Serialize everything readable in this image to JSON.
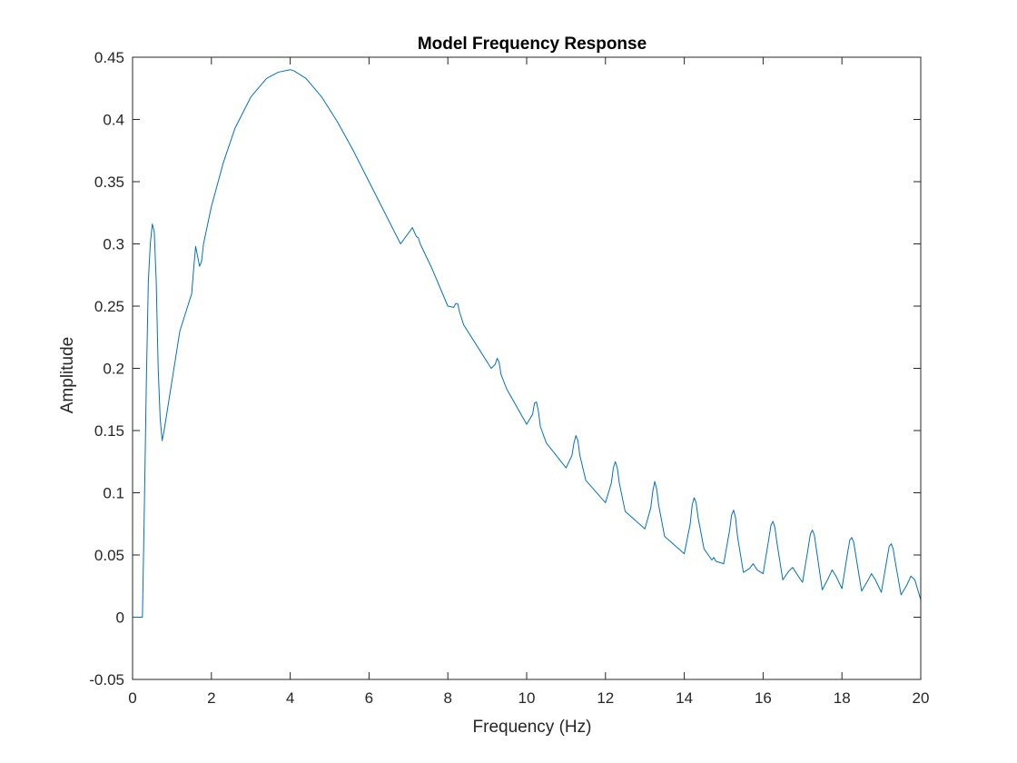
{
  "chart_data": {
    "type": "line",
    "title": "Model Frequency Response",
    "xlabel": "Frequency (Hz)",
    "ylabel": "Amplitude",
    "xlim": [
      0,
      20
    ],
    "ylim": [
      -0.05,
      0.45
    ],
    "xticks": [
      0,
      2,
      4,
      6,
      8,
      10,
      12,
      14,
      16,
      18,
      20
    ],
    "yticks": [
      -0.05,
      0,
      0.05,
      0.1,
      0.15,
      0.2,
      0.25,
      0.3,
      0.35,
      0.4,
      0.45
    ],
    "xtick_labels": [
      "0",
      "2",
      "4",
      "6",
      "8",
      "10",
      "12",
      "14",
      "16",
      "18",
      "20"
    ],
    "ytick_labels": [
      "-0.05",
      "0",
      "0.05",
      "0.1",
      "0.15",
      "0.2",
      "0.25",
      "0.3",
      "0.35",
      "0.4",
      "0.45"
    ],
    "grid": false,
    "box": true,
    "line_color": "#0072BD",
    "axis_color": "#262626",
    "series": [
      {
        "x": [
          0,
          0.25,
          0.3,
          0.35,
          0.4,
          0.45,
          0.5,
          0.55,
          0.6,
          0.65,
          0.7,
          0.75,
          0.8,
          1.0,
          1.2,
          1.4,
          1.5,
          1.55,
          1.6,
          1.65,
          1.7,
          1.75,
          1.8,
          2.0,
          2.3,
          2.6,
          3.0,
          3.4,
          3.7,
          4.0,
          4.1,
          4.4,
          4.8,
          5.2,
          5.6,
          6.0,
          6.4,
          6.8,
          7.1,
          7.2,
          7.25,
          7.3,
          7.6,
          8.0,
          8.15,
          8.2,
          8.25,
          8.3,
          8.4,
          8.8,
          9.1,
          9.2,
          9.25,
          9.3,
          9.35,
          9.5,
          10.0,
          10.15,
          10.2,
          10.25,
          10.3,
          10.35,
          10.5,
          11.0,
          11.15,
          11.2,
          11.25,
          11.3,
          11.35,
          11.5,
          12.0,
          12.15,
          12.2,
          12.25,
          12.3,
          12.35,
          12.5,
          13.0,
          13.15,
          13.2,
          13.25,
          13.3,
          13.35,
          13.5,
          14.0,
          14.15,
          14.2,
          14.25,
          14.3,
          14.35,
          14.5,
          14.7,
          14.75,
          14.8,
          15.0,
          15.15,
          15.2,
          15.25,
          15.3,
          15.35,
          15.5,
          15.65,
          15.75,
          15.85,
          16.0,
          16.15,
          16.2,
          16.25,
          16.3,
          16.35,
          16.5,
          16.65,
          16.75,
          16.85,
          17.0,
          17.15,
          17.2,
          17.25,
          17.3,
          17.35,
          17.5,
          17.65,
          17.75,
          17.85,
          18.0,
          18.15,
          18.2,
          18.25,
          18.3,
          18.35,
          18.5,
          18.65,
          18.75,
          18.85,
          19.0,
          19.15,
          19.2,
          19.25,
          19.3,
          19.35,
          19.5,
          19.65,
          19.75,
          19.85,
          20.0
        ],
        "y": [
          0,
          0,
          0.09,
          0.19,
          0.27,
          0.3,
          0.316,
          0.31,
          0.27,
          0.2,
          0.16,
          0.142,
          0.15,
          0.19,
          0.23,
          0.25,
          0.26,
          0.28,
          0.298,
          0.29,
          0.282,
          0.286,
          0.3,
          0.33,
          0.365,
          0.393,
          0.418,
          0.433,
          0.438,
          0.44,
          0.439,
          0.433,
          0.418,
          0.398,
          0.375,
          0.35,
          0.325,
          0.3,
          0.313,
          0.306,
          0.305,
          0.3,
          0.28,
          0.25,
          0.249,
          0.252,
          0.252,
          0.245,
          0.235,
          0.215,
          0.2,
          0.203,
          0.208,
          0.205,
          0.195,
          0.183,
          0.155,
          0.163,
          0.172,
          0.173,
          0.165,
          0.153,
          0.14,
          0.12,
          0.13,
          0.14,
          0.146,
          0.142,
          0.13,
          0.11,
          0.092,
          0.108,
          0.12,
          0.125,
          0.12,
          0.108,
          0.085,
          0.071,
          0.088,
          0.101,
          0.109,
          0.103,
          0.09,
          0.065,
          0.051,
          0.075,
          0.09,
          0.096,
          0.092,
          0.08,
          0.055,
          0.046,
          0.048,
          0.045,
          0.043,
          0.07,
          0.082,
          0.086,
          0.08,
          0.065,
          0.036,
          0.039,
          0.043,
          0.038,
          0.035,
          0.064,
          0.074,
          0.077,
          0.072,
          0.06,
          0.03,
          0.037,
          0.04,
          0.035,
          0.028,
          0.057,
          0.067,
          0.07,
          0.066,
          0.055,
          0.022,
          0.031,
          0.038,
          0.033,
          0.023,
          0.053,
          0.062,
          0.064,
          0.06,
          0.05,
          0.021,
          0.029,
          0.035,
          0.03,
          0.02,
          0.048,
          0.057,
          0.059,
          0.055,
          0.045,
          0.018,
          0.026,
          0.033,
          0.03,
          0.014
        ]
      }
    ]
  }
}
